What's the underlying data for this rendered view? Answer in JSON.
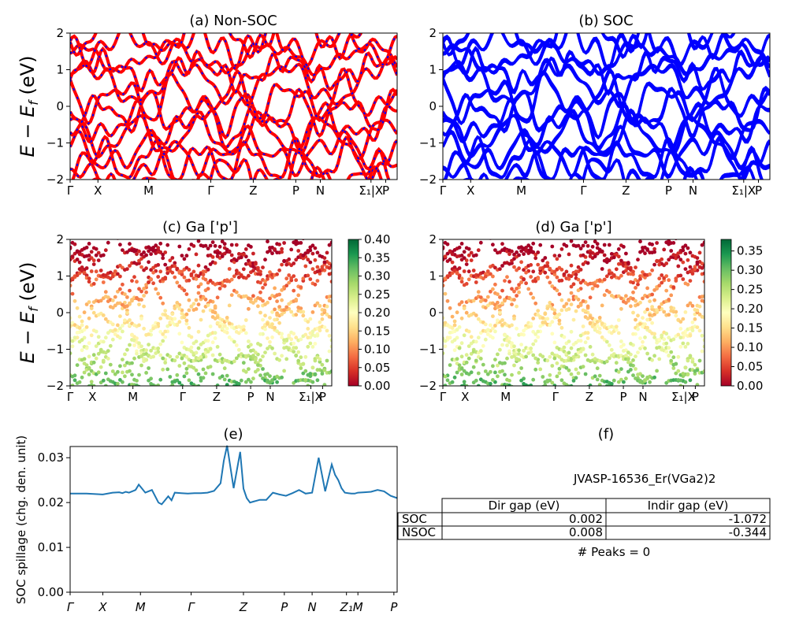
{
  "colors": {
    "nonsoc_line": "#ff0000",
    "nonsoc_dash": "#0000ff",
    "soc_line": "#0000ff",
    "spillage_line": "#1f77b4",
    "colormap": [
      "#a50026",
      "#d73027",
      "#f46d43",
      "#fdae61",
      "#fee08b",
      "#ffffbf",
      "#d9ef8b",
      "#a6d96a",
      "#66bd63",
      "#1a9850",
      "#006837"
    ]
  },
  "band_xticks": [
    "Γ",
    "X",
    "M",
    "Γ",
    "Z",
    "P",
    "N",
    "Σ₁|X",
    "P"
  ],
  "ylabel": "E − E_f (eV)",
  "chart_data": [
    {
      "id": "a",
      "type": "line",
      "title": "(a) Non-SOC",
      "ylim": [
        -2,
        2
      ],
      "yticks": [
        "2",
        "1",
        "0",
        "−1",
        "−2"
      ],
      "legend": "none"
    },
    {
      "id": "b",
      "type": "line",
      "title": "(b) SOC",
      "ylim": [
        -2,
        2
      ],
      "yticks": [
        "2",
        "1",
        "0",
        "−1",
        "−2"
      ],
      "legend": "none"
    },
    {
      "id": "c",
      "type": "scatter",
      "title": "(c)  Ga ['p']",
      "ylim": [
        -2,
        2
      ],
      "yticks": [
        "2",
        "1",
        "0",
        "−1",
        "−2"
      ],
      "colorbar": {
        "min": 0.0,
        "max": 0.4,
        "ticks": [
          "0.40",
          "0.35",
          "0.30",
          "0.25",
          "0.20",
          "0.15",
          "0.10",
          "0.05",
          "0.00"
        ]
      }
    },
    {
      "id": "d",
      "type": "scatter",
      "title": "(d) Ga ['p']",
      "ylim": [
        -2,
        2
      ],
      "yticks": [
        "2",
        "1",
        "0",
        "−1",
        "−2"
      ],
      "colorbar": {
        "min": 0.0,
        "max": 0.38,
        "ticks": [
          "0.35",
          "0.30",
          "0.25",
          "0.20",
          "0.15",
          "0.10",
          "0.05",
          "0.00"
        ]
      }
    },
    {
      "id": "e",
      "type": "line",
      "title": "(e)",
      "ylabel": "SOC spillage (chg. den. unit)",
      "ylim": [
        0,
        0.0325
      ],
      "yticks": [
        "0.03",
        "0.02",
        "0.01",
        "0.00"
      ],
      "xticks": [
        "Γ",
        "X",
        "M",
        "Γ",
        "Z",
        "P",
        "N",
        "Z₁",
        "M",
        "P"
      ],
      "x": [
        0,
        0.05,
        0.1,
        0.13,
        0.15,
        0.16,
        0.17,
        0.18,
        0.19,
        0.2,
        0.21,
        0.22,
        0.23,
        0.25,
        0.27,
        0.28,
        0.3,
        0.31,
        0.32,
        0.34,
        0.36,
        0.38,
        0.4,
        0.42,
        0.44,
        0.46,
        0.47,
        0.48,
        0.5,
        0.52,
        0.53,
        0.54,
        0.55,
        0.56,
        0.58,
        0.6,
        0.62,
        0.64,
        0.66,
        0.68,
        0.7,
        0.72,
        0.74,
        0.76,
        0.78,
        0.8,
        0.81,
        0.82,
        0.83,
        0.84,
        0.85,
        0.86,
        0.87,
        0.88,
        0.9,
        0.92,
        0.94,
        0.96,
        0.98,
        1.0
      ],
      "values": [
        0.022,
        0.022,
        0.0218,
        0.0222,
        0.0223,
        0.0221,
        0.0224,
        0.0222,
        0.0225,
        0.0228,
        0.024,
        0.0231,
        0.0222,
        0.0228,
        0.02,
        0.0196,
        0.0214,
        0.0205,
        0.0222,
        0.0221,
        0.022,
        0.0221,
        0.0221,
        0.0222,
        0.0226,
        0.0243,
        0.0293,
        0.0327,
        0.0232,
        0.0313,
        0.0231,
        0.021,
        0.02,
        0.0202,
        0.0206,
        0.0206,
        0.0222,
        0.0218,
        0.0215,
        0.0221,
        0.0228,
        0.022,
        0.0222,
        0.03,
        0.0225,
        0.0285,
        0.0262,
        0.025,
        0.0232,
        0.0222,
        0.0221,
        0.022,
        0.022,
        0.0222,
        0.0223,
        0.0224,
        0.0228,
        0.0225,
        0.0215,
        0.021
      ]
    },
    {
      "id": "f",
      "type": "table",
      "title": "(f)",
      "material": "JVASP-16536_Er(VGa2)2",
      "columns": [
        "Dir gap (eV)",
        "Indir gap (eV)"
      ],
      "rows": [
        {
          "label": "SOC",
          "dir": "0.002",
          "indir": "-1.072"
        },
        {
          "label": "NSOC",
          "dir": "0.008",
          "indir": "-0.344"
        }
      ],
      "peaks": "# Peaks = 0"
    }
  ]
}
